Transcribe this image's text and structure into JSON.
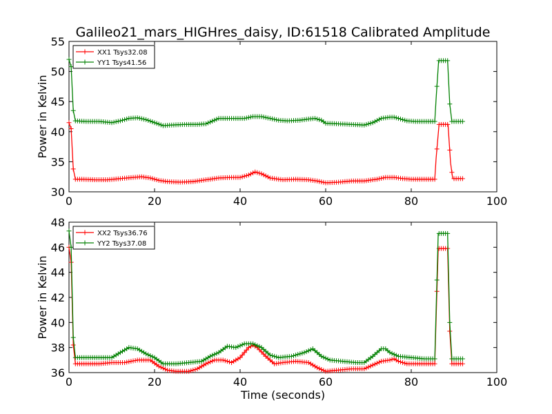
{
  "title": "Galileo21_mars_HIGHres_daisy, ID:61518 Calibrated Amplitude",
  "chart_data": [
    {
      "type": "line",
      "xlabel": "",
      "ylabel": "Power in Kelvin",
      "xlim": [
        0,
        100
      ],
      "ylim": [
        30,
        55
      ],
      "xticks": [
        "0",
        "20",
        "40",
        "60",
        "80",
        "100"
      ],
      "yticks": [
        "30",
        "35",
        "40",
        "45",
        "50",
        "55"
      ],
      "grid": false,
      "legend_position": "top-left",
      "series": [
        {
          "name": "XX1 Tsys32.08",
          "color": "#ff0000",
          "points": [
            [
              0,
              41.5
            ],
            [
              0.5,
              40.5
            ],
            [
              1,
              33.8
            ],
            [
              1.5,
              32.1
            ],
            [
              3,
              32.1
            ],
            [
              6,
              32.0
            ],
            [
              9,
              32.0
            ],
            [
              12,
              32.2
            ],
            [
              15,
              32.4
            ],
            [
              17,
              32.5
            ],
            [
              19,
              32.3
            ],
            [
              21,
              31.9
            ],
            [
              23,
              31.7
            ],
            [
              26,
              31.6
            ],
            [
              29,
              31.7
            ],
            [
              32,
              32.0
            ],
            [
              35,
              32.3
            ],
            [
              38,
              32.4
            ],
            [
              40,
              32.4
            ],
            [
              42,
              32.8
            ],
            [
              43.5,
              33.3
            ],
            [
              45,
              33.0
            ],
            [
              47,
              32.3
            ],
            [
              50,
              32.0
            ],
            [
              53,
              32.1
            ],
            [
              56,
              32.0
            ],
            [
              58,
              31.8
            ],
            [
              60,
              31.5
            ],
            [
              63,
              31.6
            ],
            [
              66,
              31.8
            ],
            [
              69,
              31.8
            ],
            [
              72,
              32.1
            ],
            [
              74,
              32.4
            ],
            [
              76,
              32.4
            ],
            [
              78,
              32.2
            ],
            [
              80,
              32.1
            ],
            [
              83,
              32.1
            ],
            [
              85.5,
              32.1
            ],
            [
              85.8,
              35.5
            ],
            [
              86.5,
              41.2
            ],
            [
              88,
              41.2
            ],
            [
              88.6,
              41.2
            ],
            [
              89.2,
              34.8
            ],
            [
              89.7,
              32.2
            ],
            [
              92,
              32.2
            ]
          ]
        },
        {
          "name": "YY1 Tsys41.56",
          "color": "#008000",
          "points": [
            [
              0,
              52.0
            ],
            [
              0.5,
              50.8
            ],
            [
              1,
              43.5
            ],
            [
              1.5,
              41.8
            ],
            [
              4,
              41.7
            ],
            [
              7,
              41.7
            ],
            [
              10,
              41.5
            ],
            [
              12,
              41.8
            ],
            [
              14,
              42.2
            ],
            [
              16,
              42.3
            ],
            [
              18,
              42.0
            ],
            [
              20,
              41.5
            ],
            [
              22,
              41.0
            ],
            [
              24,
              41.1
            ],
            [
              27,
              41.2
            ],
            [
              30,
              41.2
            ],
            [
              32,
              41.3
            ],
            [
              34,
              41.9
            ],
            [
              35,
              42.2
            ],
            [
              38,
              42.2
            ],
            [
              41,
              42.2
            ],
            [
              43,
              42.5
            ],
            [
              45,
              42.5
            ],
            [
              47,
              42.2
            ],
            [
              49,
              41.9
            ],
            [
              51,
              41.8
            ],
            [
              54,
              41.9
            ],
            [
              56,
              42.1
            ],
            [
              57.5,
              42.2
            ],
            [
              59,
              41.9
            ],
            [
              60,
              41.4
            ],
            [
              63,
              41.3
            ],
            [
              66,
              41.2
            ],
            [
              69,
              41.1
            ],
            [
              71,
              41.5
            ],
            [
              73,
              42.2
            ],
            [
              75,
              42.4
            ],
            [
              76,
              42.4
            ],
            [
              77,
              42.2
            ],
            [
              79,
              41.8
            ],
            [
              81,
              41.7
            ],
            [
              84,
              41.7
            ],
            [
              85.5,
              41.7
            ],
            [
              85.8,
              45.4
            ],
            [
              86.4,
              51.8
            ],
            [
              88,
              51.8
            ],
            [
              88.5,
              51.8
            ],
            [
              89,
              44.6
            ],
            [
              89.5,
              41.7
            ],
            [
              92,
              41.7
            ]
          ]
        }
      ]
    },
    {
      "type": "line",
      "xlabel": "Time (seconds)",
      "ylabel": "Power in Kelvin",
      "xlim": [
        0,
        100
      ],
      "ylim": [
        36,
        48
      ],
      "xticks": [
        "0",
        "20",
        "40",
        "60",
        "80",
        "100"
      ],
      "yticks": [
        "36",
        "38",
        "40",
        "42",
        "44",
        "46",
        "48"
      ],
      "grid": false,
      "legend_position": "top-left",
      "series": [
        {
          "name": "XX2 Tsys36.76",
          "color": "#ff0000",
          "points": [
            [
              0,
              46.0
            ],
            [
              0.5,
              44.8
            ],
            [
              1,
              38.2
            ],
            [
              1.5,
              36.7
            ],
            [
              4,
              36.7
            ],
            [
              7,
              36.7
            ],
            [
              10,
              36.8
            ],
            [
              13,
              36.8
            ],
            [
              16,
              37.0
            ],
            [
              19,
              37.0
            ],
            [
              21,
              36.5
            ],
            [
              23,
              36.2
            ],
            [
              25,
              36.1
            ],
            [
              28,
              36.1
            ],
            [
              30,
              36.3
            ],
            [
              32,
              36.7
            ],
            [
              34,
              37.0
            ],
            [
              36,
              37.0
            ],
            [
              38,
              36.8
            ],
            [
              40,
              37.2
            ],
            [
              42,
              38.0
            ],
            [
              43,
              38.2
            ],
            [
              44,
              38.0
            ],
            [
              46,
              37.3
            ],
            [
              48,
              36.7
            ],
            [
              50,
              36.8
            ],
            [
              53,
              36.9
            ],
            [
              56,
              36.8
            ],
            [
              58,
              36.4
            ],
            [
              60,
              36.1
            ],
            [
              63,
              36.2
            ],
            [
              66,
              36.3
            ],
            [
              69,
              36.3
            ],
            [
              71,
              36.6
            ],
            [
              73,
              36.9
            ],
            [
              75,
              37.0
            ],
            [
              76,
              37.1
            ],
            [
              77,
              36.9
            ],
            [
              79,
              36.7
            ],
            [
              82,
              36.7
            ],
            [
              85.5,
              36.7
            ],
            [
              85.8,
              40.2
            ],
            [
              86.3,
              45.9
            ],
            [
              88,
              45.9
            ],
            [
              88.5,
              45.9
            ],
            [
              89,
              39.3
            ],
            [
              89.5,
              36.7
            ],
            [
              92,
              36.7
            ]
          ]
        },
        {
          "name": "YY2 Tsys37.08",
          "color": "#008000",
          "points": [
            [
              0,
              47.3
            ],
            [
              0.5,
              46.0
            ],
            [
              1,
              38.8
            ],
            [
              1.5,
              37.2
            ],
            [
              4,
              37.2
            ],
            [
              7,
              37.2
            ],
            [
              10,
              37.2
            ],
            [
              12,
              37.6
            ],
            [
              14,
              38.0
            ],
            [
              16,
              37.9
            ],
            [
              18,
              37.5
            ],
            [
              20,
              37.2
            ],
            [
              22,
              36.7
            ],
            [
              25,
              36.7
            ],
            [
              28,
              36.8
            ],
            [
              31,
              36.9
            ],
            [
              33,
              37.3
            ],
            [
              35,
              37.6
            ],
            [
              37,
              38.1
            ],
            [
              39,
              38.0
            ],
            [
              41,
              38.3
            ],
            [
              43,
              38.3
            ],
            [
              45,
              38.0
            ],
            [
              47,
              37.4
            ],
            [
              49,
              37.2
            ],
            [
              52,
              37.3
            ],
            [
              55,
              37.6
            ],
            [
              57,
              37.9
            ],
            [
              59,
              37.3
            ],
            [
              61,
              37.0
            ],
            [
              64,
              36.9
            ],
            [
              67,
              36.8
            ],
            [
              69,
              36.8
            ],
            [
              71,
              37.3
            ],
            [
              73,
              37.9
            ],
            [
              74,
              37.9
            ],
            [
              75,
              37.6
            ],
            [
              77,
              37.3
            ],
            [
              80,
              37.2
            ],
            [
              83,
              37.1
            ],
            [
              85.5,
              37.1
            ],
            [
              85.8,
              40.9
            ],
            [
              86.3,
              47.1
            ],
            [
              88,
              47.1
            ],
            [
              88.5,
              47.1
            ],
            [
              89,
              40.0
            ],
            [
              89.5,
              37.1
            ],
            [
              92,
              37.1
            ]
          ]
        }
      ]
    }
  ]
}
